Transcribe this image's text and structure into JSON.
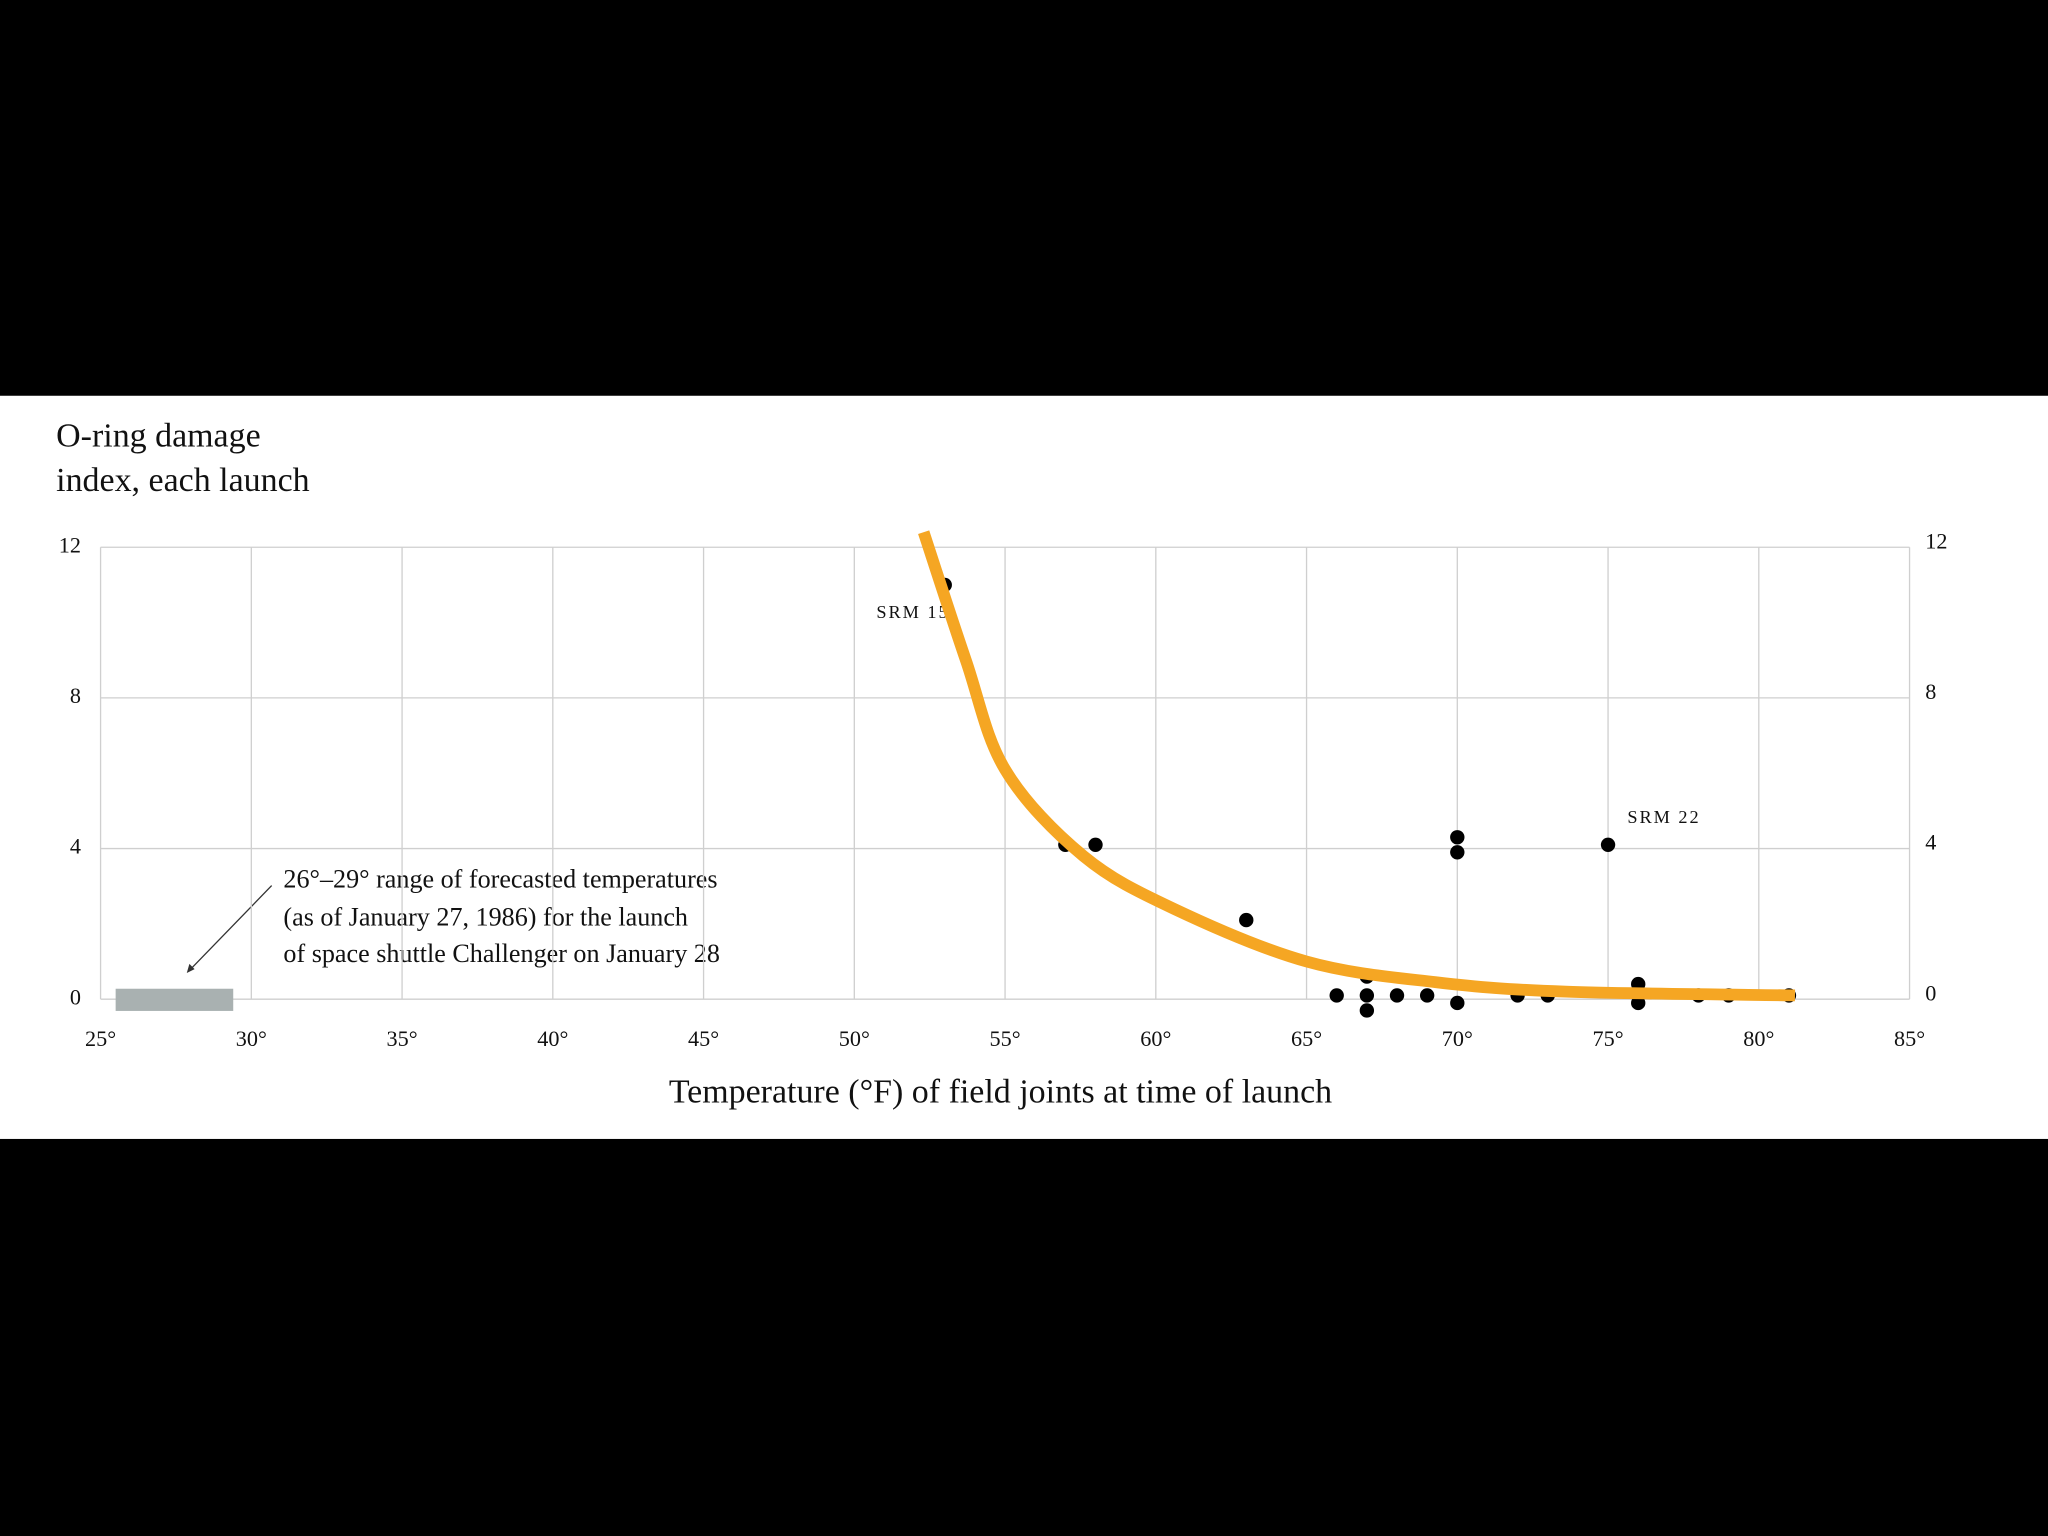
{
  "chart_data": {
    "type": "scatter",
    "ylabel": [
      "O-ring damage",
      "index, each launch"
    ],
    "xlabel": "Temperature (°F) of field joints at time of launch",
    "xlim": [
      25,
      85
    ],
    "ylim": [
      0,
      12
    ],
    "y2lim": [
      0,
      12
    ],
    "xticks": [
      {
        "value": 25,
        "label": "25°"
      },
      {
        "value": 30,
        "label": "30°"
      },
      {
        "value": 35,
        "label": "35°"
      },
      {
        "value": 40,
        "label": "40°"
      },
      {
        "value": 45,
        "label": "45°"
      },
      {
        "value": 50,
        "label": "50°"
      },
      {
        "value": 55,
        "label": "55°"
      },
      {
        "value": 60,
        "label": "60°"
      },
      {
        "value": 65,
        "label": "65°"
      },
      {
        "value": 70,
        "label": "70°"
      },
      {
        "value": 75,
        "label": "75°"
      },
      {
        "value": 80,
        "label": "80°"
      },
      {
        "value": 85,
        "label": "85°"
      }
    ],
    "yticks": [
      0,
      4,
      8,
      12
    ],
    "y2ticks": [
      0,
      4,
      8,
      12
    ],
    "grid": true,
    "color": "#000000",
    "x": [
      53,
      57,
      58,
      63,
      66,
      67,
      67,
      67,
      68,
      69,
      70,
      70,
      70,
      72,
      73,
      75,
      76,
      76,
      78,
      79,
      81
    ],
    "values": [
      11,
      4.1,
      4.1,
      2.1,
      0.1,
      0.6,
      0.1,
      -0.3,
      0.1,
      0.1,
      4.3,
      3.9,
      -0.1,
      0.1,
      0.1,
      4.1,
      0.4,
      -0.1,
      0.1,
      0.1,
      0.1
    ],
    "annotations": [
      "SRM 15",
      "SRM 22"
    ],
    "forecast_range": [
      25.5,
      29.4
    ],
    "forecast_color": "#a9b1b1",
    "note": [
      "26°–29° range of forecasted temperatures",
      "(as of January 27, 1986) for the launch",
      "of space shuttle Challenger on January 28"
    ],
    "trend": {
      "color": "#f5a623",
      "x": [
        52.3,
        53.7,
        55.0,
        57.6,
        60.6,
        65.0,
        69.3,
        73.6,
        81.2
      ],
      "values": [
        12.4,
        9.0,
        6.1,
        3.8,
        2.4,
        1.0,
        0.45,
        0.2,
        0.1
      ]
    }
  }
}
